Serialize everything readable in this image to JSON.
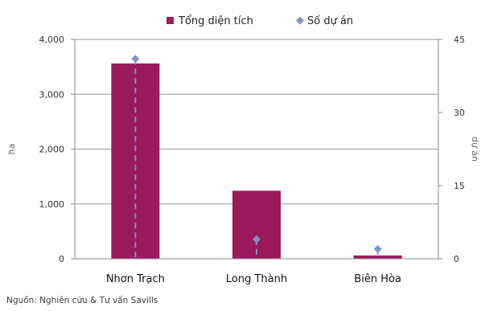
{
  "chart_data": {
    "type": "bar",
    "categories": [
      "Nhơn Trạch",
      "Long Thành",
      "Biên Hòa"
    ],
    "series": [
      {
        "name": "Tổng diện tích",
        "kind": "bar",
        "axis": "left",
        "color": "#9b1a5c",
        "values": [
          3560,
          1240,
          60
        ]
      },
      {
        "name": "Số dự án",
        "kind": "marker",
        "axis": "right",
        "color": "#7d96c6",
        "values": [
          41,
          4,
          2
        ]
      }
    ],
    "ylabel": "ha",
    "ylabel_right": "dự án",
    "ylim": [
      0,
      4000
    ],
    "ylim_right": [
      0,
      45
    ],
    "yticks": [
      "0",
      "1,000",
      "2,000",
      "3,000",
      "4,000"
    ],
    "yticks_right": [
      "0",
      "15",
      "30",
      "45"
    ],
    "grid": true,
    "legend_position": "top-center",
    "source": "Nguồn: Nghiên cứu & Tư vấn Savills"
  }
}
